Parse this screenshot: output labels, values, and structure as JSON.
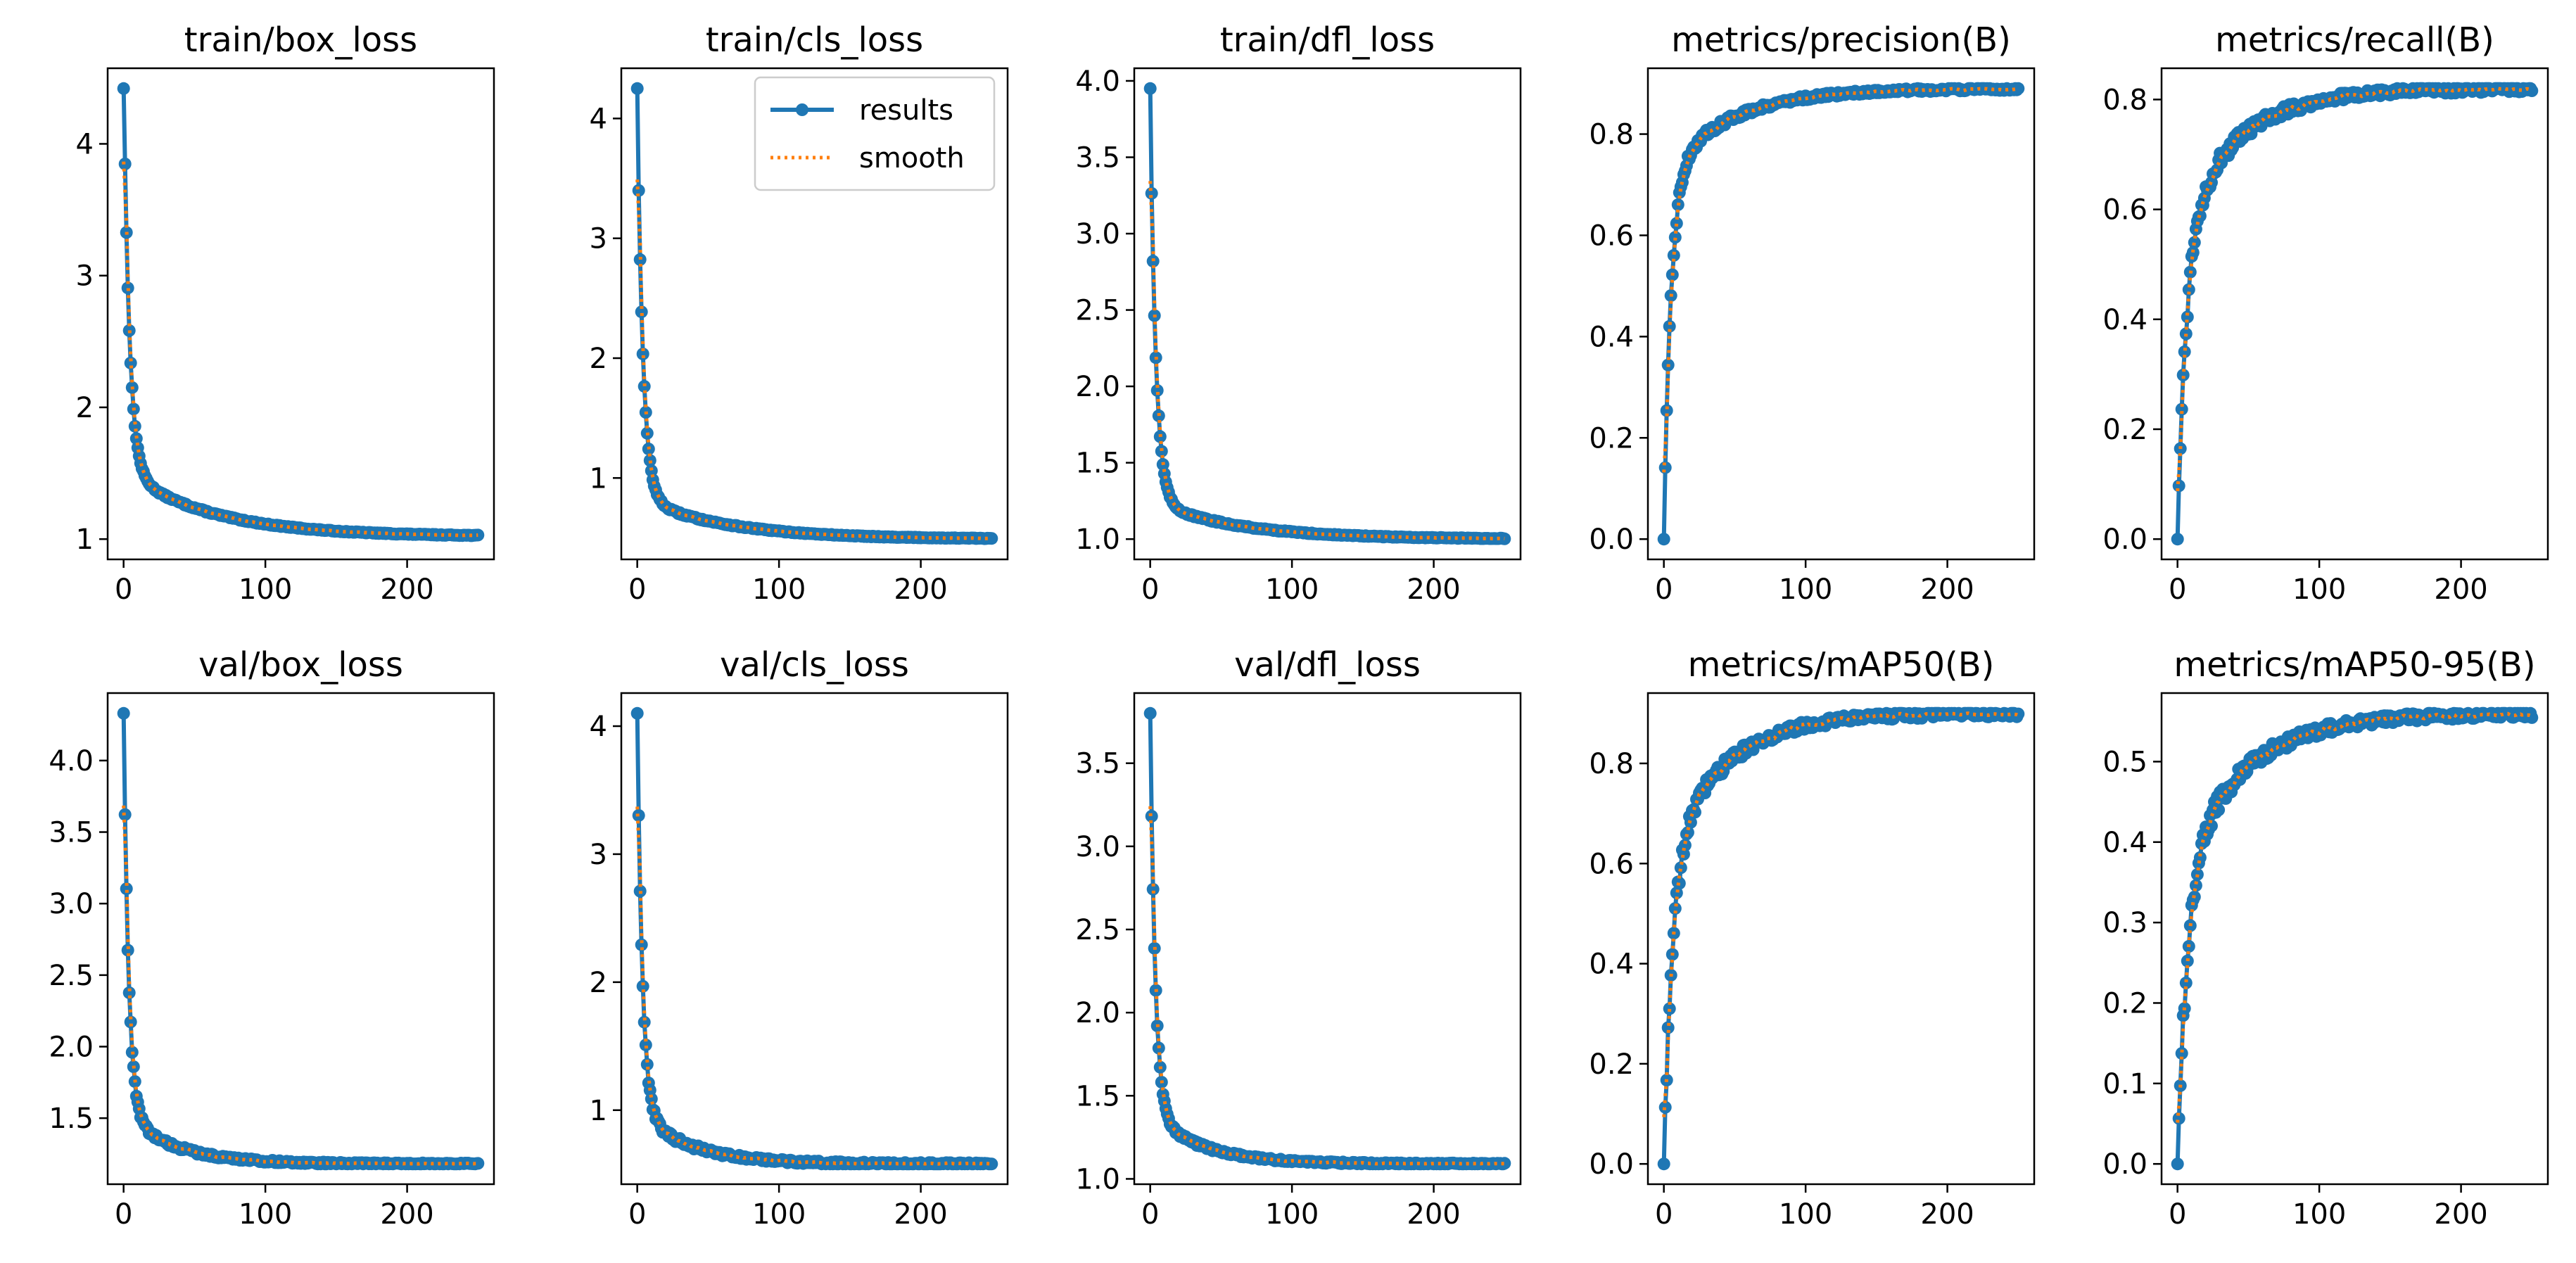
{
  "colors": {
    "results": "#1f77b4",
    "smooth": "#ff7f0e"
  },
  "legend": {
    "results_label": "results",
    "smooth_label": "smooth"
  },
  "chart_data": [
    {
      "type": "line",
      "title": "train/box_loss",
      "xlim": [
        0,
        250
      ],
      "ylim": [
        1.0,
        4.42
      ],
      "y_ticks": [
        "1",
        "2",
        "3",
        "4"
      ],
      "x_ticks": [
        "0",
        "100",
        "200"
      ],
      "curve": {
        "start": 4.42,
        "end": 1.02,
        "fast_amp": 3.0,
        "fast_tau": 4.0,
        "slow_amp": 0.5,
        "slow_tau": 60.0,
        "noise": 0.01
      },
      "legend": false
    },
    {
      "type": "line",
      "title": "train/cls_loss",
      "xlim": [
        0,
        250
      ],
      "ylim": [
        0.49,
        4.25
      ],
      "y_ticks": [
        "1",
        "2",
        "3",
        "4"
      ],
      "x_ticks": [
        "0",
        "100",
        "200"
      ],
      "curve": {
        "start": 4.25,
        "end": 0.49,
        "fast_amp": 3.3,
        "fast_tau": 4.0,
        "slow_amp": 0.35,
        "slow_tau": 60.0,
        "noise": 0.01
      },
      "legend": true
    },
    {
      "type": "line",
      "title": "train/dfl_loss",
      "xlim": [
        0,
        250
      ],
      "ylim": [
        1.0,
        3.95
      ],
      "y_ticks": [
        "1.0",
        "1.5",
        "2.0",
        "2.5",
        "3.0",
        "3.5",
        "4.0"
      ],
      "x_ticks": [
        "0",
        "100",
        "200"
      ],
      "curve": {
        "start": 3.95,
        "end": 1.0,
        "fast_amp": 2.6,
        "fast_tau": 4.0,
        "slow_amp": 0.25,
        "slow_tau": 60.0,
        "noise": 0.008
      },
      "legend": false
    },
    {
      "type": "line",
      "title": "metrics/precision(B)",
      "xlim": [
        0,
        250
      ],
      "ylim": [
        0.0,
        0.89
      ],
      "y_ticks": [
        "0.0",
        "0.2",
        "0.4",
        "0.6",
        "0.8"
      ],
      "x_ticks": [
        "0",
        "100",
        "200"
      ],
      "curve": {
        "start": 0.0,
        "end": 0.89,
        "fast_amp": 0.72,
        "fast_tau": 5.0,
        "slow_amp": 0.17,
        "slow_tau": 45.0,
        "noise": 0.01
      },
      "legend": false
    },
    {
      "type": "line",
      "title": "metrics/recall(B)",
      "xlim": [
        0,
        250
      ],
      "ylim": [
        0.0,
        0.82
      ],
      "y_ticks": [
        "0.0",
        "0.2",
        "0.4",
        "0.6",
        "0.8"
      ],
      "x_ticks": [
        "0",
        "100",
        "200"
      ],
      "curve": {
        "start": 0.0,
        "end": 0.82,
        "fast_amp": 0.55,
        "fast_tau": 6.0,
        "slow_amp": 0.27,
        "slow_tau": 40.0,
        "noise": 0.02
      },
      "legend": false
    },
    {
      "type": "line",
      "title": "val/box_loss",
      "xlim": [
        0,
        250
      ],
      "ylim": [
        1.18,
        4.33
      ],
      "y_ticks": [
        "1.5",
        "2.0",
        "2.5",
        "3.0",
        "3.5",
        "4.0"
      ],
      "x_ticks": [
        "0",
        "100",
        "200"
      ],
      "curve": {
        "start": 4.33,
        "end": 1.18,
        "fast_amp": 2.8,
        "fast_tau": 3.5,
        "slow_amp": 0.35,
        "slow_tau": 35.0,
        "noise": 0.02
      },
      "legend": false
    },
    {
      "type": "line",
      "title": "val/cls_loss",
      "xlim": [
        0,
        250
      ],
      "ylim": [
        0.58,
        4.1
      ],
      "y_ticks": [
        "1",
        "2",
        "3",
        "4"
      ],
      "x_ticks": [
        "0",
        "100",
        "200"
      ],
      "curve": {
        "start": 4.1,
        "end": 0.58,
        "fast_amp": 3.1,
        "fast_tau": 3.5,
        "slow_amp": 0.42,
        "slow_tau": 35.0,
        "noise": 0.03
      },
      "legend": false
    },
    {
      "type": "line",
      "title": "val/dfl_loss",
      "xlim": [
        0,
        250
      ],
      "ylim": [
        1.09,
        3.8
      ],
      "y_ticks": [
        "1.0",
        "1.5",
        "2.0",
        "2.5",
        "3.0",
        "3.5"
      ],
      "x_ticks": [
        "0",
        "100",
        "200"
      ],
      "curve": {
        "start": 3.8,
        "end": 1.09,
        "fast_amp": 2.4,
        "fast_tau": 3.5,
        "slow_amp": 0.31,
        "slow_tau": 35.0,
        "noise": 0.015
      },
      "legend": false
    },
    {
      "type": "line",
      "title": "metrics/mAP50(B)",
      "xlim": [
        0,
        250
      ],
      "ylim": [
        0.0,
        0.9
      ],
      "y_ticks": [
        "0.0",
        "0.2",
        "0.4",
        "0.6",
        "0.8"
      ],
      "x_ticks": [
        "0",
        "100",
        "200"
      ],
      "curve": {
        "start": 0.0,
        "end": 0.9,
        "fast_amp": 0.6,
        "fast_tau": 6.0,
        "slow_amp": 0.3,
        "slow_tau": 40.0,
        "noise": 0.02
      },
      "legend": false
    },
    {
      "type": "line",
      "title": "metrics/mAP50-95(B)",
      "xlim": [
        0,
        250
      ],
      "ylim": [
        0.0,
        0.56
      ],
      "y_ticks": [
        "0.0",
        "0.1",
        "0.2",
        "0.3",
        "0.4",
        "0.5"
      ],
      "x_ticks": [
        "0",
        "100",
        "200"
      ],
      "curve": {
        "start": 0.0,
        "end": 0.56,
        "fast_amp": 0.36,
        "fast_tau": 7.0,
        "slow_amp": 0.2,
        "slow_tau": 45.0,
        "noise": 0.015
      },
      "legend": false
    }
  ]
}
